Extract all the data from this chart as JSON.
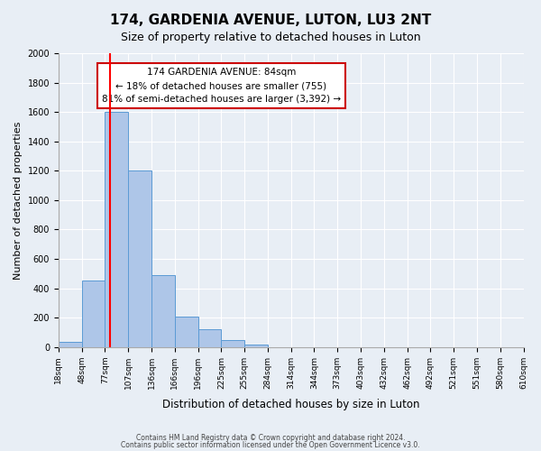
{
  "title": "174, GARDENIA AVENUE, LUTON, LU3 2NT",
  "subtitle": "Size of property relative to detached houses in Luton",
  "xlabel": "Distribution of detached houses by size in Luton",
  "ylabel": "Number of detached properties",
  "bin_labels": [
    "18sqm",
    "48sqm",
    "77sqm",
    "107sqm",
    "136sqm",
    "166sqm",
    "196sqm",
    "225sqm",
    "255sqm",
    "284sqm",
    "314sqm",
    "344sqm",
    "373sqm",
    "403sqm",
    "432sqm",
    "462sqm",
    "492sqm",
    "521sqm",
    "551sqm",
    "580sqm",
    "610sqm"
  ],
  "bar_heights": [
    35,
    455,
    1600,
    1200,
    490,
    210,
    120,
    45,
    20,
    0,
    0,
    0,
    0,
    0,
    0,
    0,
    0,
    0,
    0,
    0
  ],
  "bar_color": "#aec6e8",
  "bar_edge_color": "#5b9bd5",
  "red_line_x": 2,
  "ylim": [
    0,
    2000
  ],
  "yticks": [
    0,
    200,
    400,
    600,
    800,
    1000,
    1200,
    1400,
    1600,
    1800,
    2000
  ],
  "annotation_title": "174 GARDENIA AVENUE: 84sqm",
  "annotation_line1": "← 18% of detached houses are smaller (755)",
  "annotation_line2": "81% of semi-detached houses are larger (3,392) →",
  "annotation_box_color": "#ffffff",
  "annotation_box_edge": "#cc0000",
  "footer1": "Contains HM Land Registry data © Crown copyright and database right 2024.",
  "footer2": "Contains public sector information licensed under the Open Government Licence v3.0.",
  "background_color": "#e8eef5",
  "plot_bg_color": "#e8eef5"
}
